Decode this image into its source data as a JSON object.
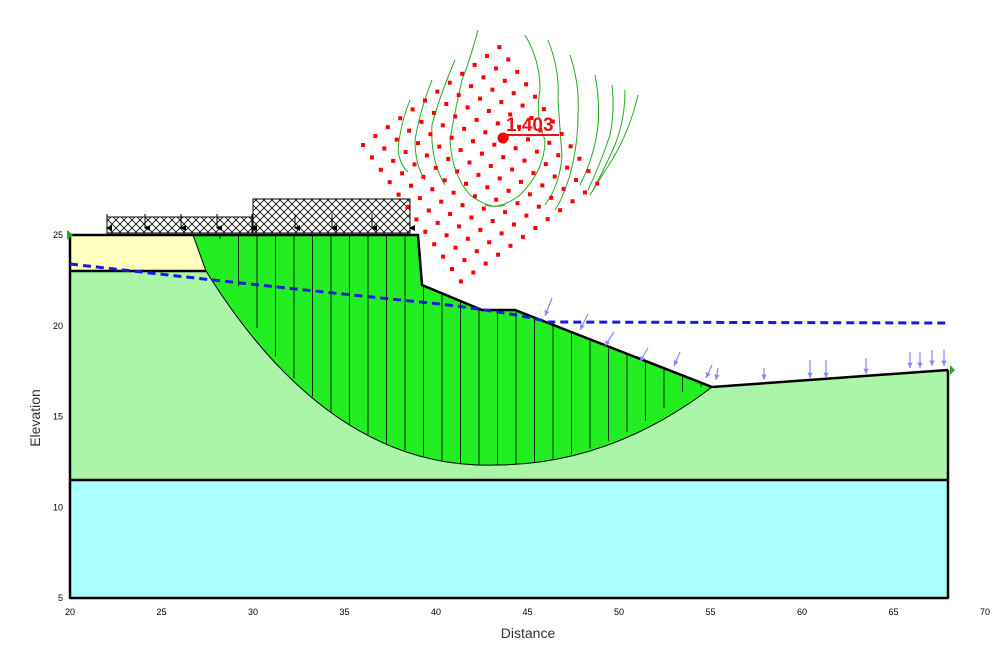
{
  "axes": {
    "x_title": "Distance",
    "y_title": "Elevation",
    "x_ticks": [
      "20",
      "25",
      "30",
      "35",
      "40",
      "45",
      "50",
      "55",
      "60",
      "65",
      "70"
    ],
    "y_ticks": [
      "5",
      "10",
      "15",
      "20",
      "25"
    ]
  },
  "factor_of_safety": "1.403",
  "colors": {
    "bedrock": "#aaffff",
    "lower_soil": "#aaf5a8",
    "upper_fill": "#ffffc0",
    "slip_mass": "#22ee22",
    "piezometric_line": "#1a1adf",
    "grid_points": "#ff0000",
    "contours": "#22aa22",
    "water_pressure_arrows": "#8888ee",
    "surcharge_load": "#000000"
  },
  "icons": [
    "slope-start-marker-icon",
    "slope-end-marker-icon",
    "critical-center-icon"
  ]
}
